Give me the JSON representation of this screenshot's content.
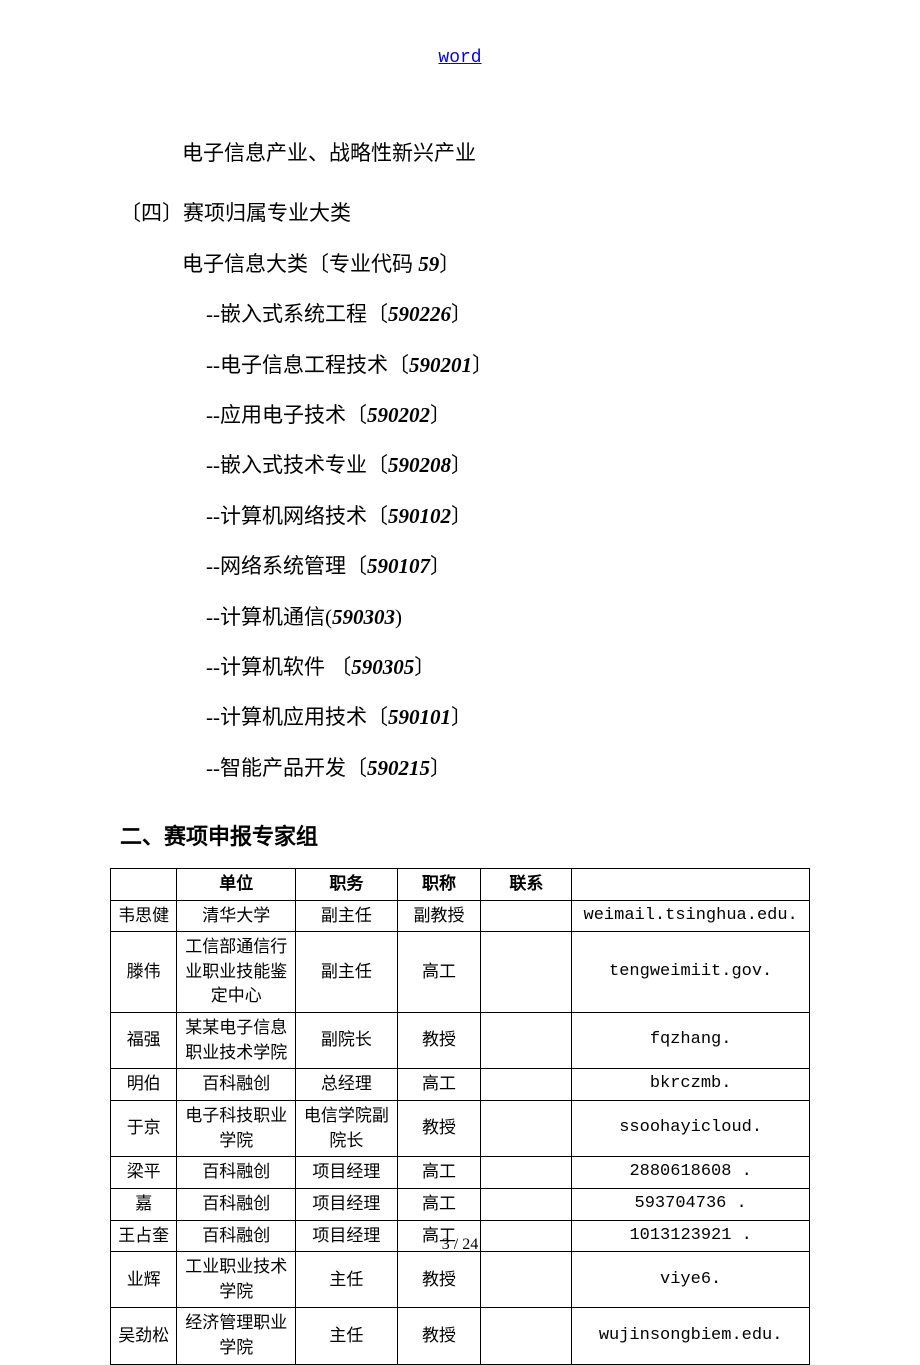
{
  "header_link": "word",
  "intro_line": "电子信息产业、战略性新兴产业",
  "section4_title": "〔四〕赛项归属专业大类",
  "category_line_prefix": "电子信息大类〔专业代码 ",
  "category_code": "59",
  "category_line_suffix": "〕",
  "items": [
    {
      "text": "--嵌入式系统工程〔",
      "code": "590226",
      "suffix": "〕"
    },
    {
      "text": "--电子信息工程技术〔",
      "code": "590201",
      "suffix": "〕"
    },
    {
      "text": "--应用电子技术〔",
      "code": "590202",
      "suffix": "〕"
    },
    {
      "text": "--嵌入式技术专业〔",
      "code": "590208",
      "suffix": "〕"
    },
    {
      "text": "--计算机网络技术〔",
      "code": "590102",
      "suffix": "〕"
    },
    {
      "text": "--网络系统管理〔",
      "code": "590107",
      "suffix": "〕"
    },
    {
      "text": "--计算机通信(",
      "code": "590303",
      "suffix": ")"
    },
    {
      "text": "--计算机软件 〔",
      "code": "590305",
      "suffix": "〕"
    },
    {
      "text": "--计算机应用技术〔",
      "code": "590101",
      "suffix": "〕"
    },
    {
      "text": "--智能产品开发〔",
      "code": "590215",
      "suffix": "〕"
    }
  ],
  "section2_title": "二、赛项申报专家组",
  "table": {
    "headers": [
      "",
      "单位",
      "职务",
      "职称",
      "联系",
      ""
    ],
    "rows": [
      [
        "韦思健",
        "清华大学",
        "副主任",
        "副教授",
        "",
        "weimail.tsinghua.edu."
      ],
      [
        "滕伟",
        "工信部通信行业职业技能鉴定中心",
        "副主任",
        "高工",
        "",
        "tengweimiit.gov."
      ],
      [
        "福强",
        "某某电子信息职业技术学院",
        "副院长",
        "教授",
        "",
        "fqzhang."
      ],
      [
        "明伯",
        "百科融创",
        "总经理",
        "高工",
        "",
        "bkrczmb."
      ],
      [
        "于京",
        "电子科技职业学院",
        "电信学院副院长",
        "教授",
        "",
        "ssoohayicloud."
      ],
      [
        "梁平",
        "百科融创",
        "项目经理",
        "高工",
        "",
        "2880618608    ."
      ],
      [
        "嘉",
        "百科融创",
        "项目经理",
        "高工",
        "",
        "593704736    ."
      ],
      [
        "王占奎",
        "百科融创",
        "项目经理",
        "高工",
        "",
        "1013123921   ."
      ],
      [
        "业辉",
        "工业职业技术学院",
        "主任",
        "教授",
        "",
        "viye6."
      ],
      [
        "吴劲松",
        "经济管理职业学院",
        "主任",
        "教授",
        "",
        "wujinsongbiem.edu."
      ]
    ]
  },
  "footer": "3 / 24"
}
